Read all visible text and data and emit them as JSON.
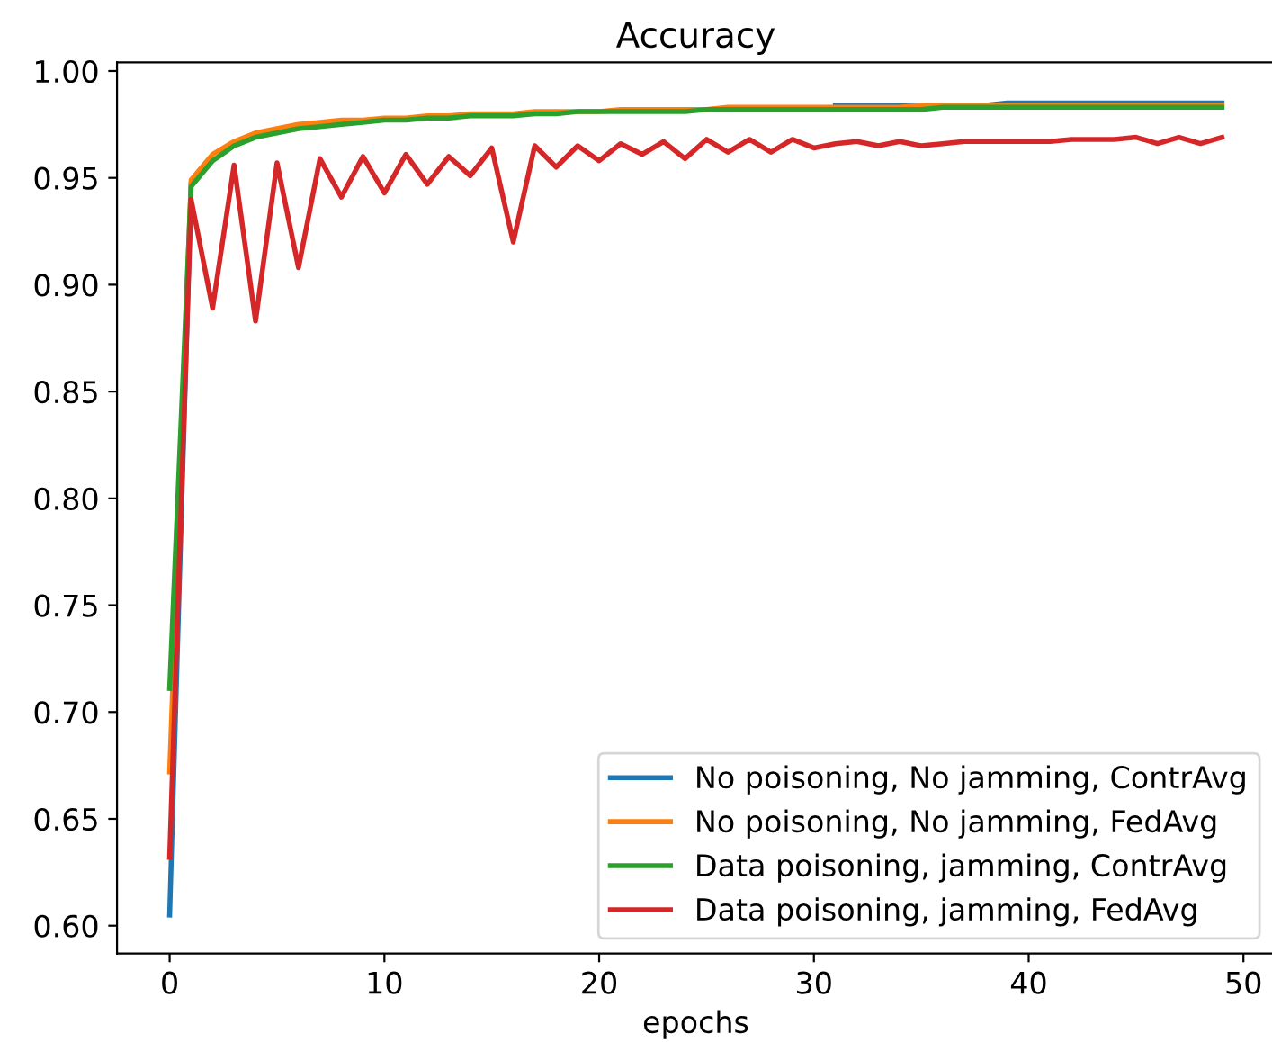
{
  "chart_data": {
    "type": "line",
    "title": "Accuracy",
    "xlabel": "epochs",
    "x": [
      0,
      1,
      2,
      3,
      4,
      5,
      6,
      7,
      8,
      9,
      10,
      11,
      12,
      13,
      14,
      15,
      16,
      17,
      18,
      19,
      20,
      21,
      22,
      23,
      24,
      25,
      26,
      27,
      28,
      29,
      30,
      31,
      32,
      33,
      34,
      35,
      36,
      37,
      38,
      39,
      40,
      41,
      42,
      43,
      44,
      45,
      46,
      47,
      48,
      49
    ],
    "series": [
      {
        "name": "No poisoning, No jamming, ContrAvg",
        "color": "#1f77b4",
        "values": [
          0.605,
          0.947,
          null,
          null,
          null,
          null,
          null,
          null,
          null,
          null,
          null,
          null,
          null,
          null,
          null,
          null,
          null,
          null,
          null,
          null,
          null,
          null,
          null,
          null,
          null,
          null,
          null,
          null,
          null,
          null,
          null,
          0.984,
          0.984,
          0.984,
          0.984,
          0.984,
          0.984,
          0.984,
          0.984,
          0.985,
          0.985,
          0.985,
          0.985,
          0.985,
          0.985,
          0.985,
          0.985,
          0.985,
          0.985,
          0.985
        ]
      },
      {
        "name": "No poisoning, No jamming, FedAvg",
        "color": "#ff7f0e",
        "values": [
          0.672,
          0.949,
          0.961,
          0.967,
          0.971,
          0.973,
          0.975,
          0.976,
          0.977,
          0.977,
          0.978,
          0.978,
          0.979,
          0.979,
          0.98,
          0.98,
          0.98,
          0.981,
          0.981,
          0.981,
          0.981,
          0.982,
          0.982,
          0.982,
          0.982,
          0.982,
          0.983,
          0.983,
          0.983,
          0.983,
          0.983,
          0.983,
          0.983,
          0.983,
          0.983,
          0.984,
          0.984,
          0.984,
          0.984,
          0.984,
          0.984,
          0.984,
          0.984,
          0.984,
          0.984,
          0.984,
          0.984,
          0.984,
          0.984,
          0.984
        ]
      },
      {
        "name": "Data poisoning, jamming, ContrAvg",
        "color": "#2ca02c",
        "values": [
          0.711,
          0.946,
          0.958,
          0.965,
          0.969,
          0.971,
          0.973,
          0.974,
          0.975,
          0.976,
          0.977,
          0.977,
          0.978,
          0.978,
          0.979,
          0.979,
          0.979,
          0.98,
          0.98,
          0.981,
          0.981,
          0.981,
          0.981,
          0.981,
          0.981,
          0.982,
          0.982,
          0.982,
          0.982,
          0.982,
          0.982,
          0.982,
          0.982,
          0.982,
          0.982,
          0.982,
          0.983,
          0.983,
          0.983,
          0.983,
          0.983,
          0.983,
          0.983,
          0.983,
          0.983,
          0.983,
          0.983,
          0.983,
          0.983,
          0.983
        ]
      },
      {
        "name": "Data poisoning, jamming, FedAvg",
        "color": "#d62728",
        "values": [
          0.632,
          0.94,
          0.889,
          0.956,
          0.883,
          0.957,
          0.908,
          0.959,
          0.941,
          0.96,
          0.943,
          0.961,
          0.947,
          0.96,
          0.951,
          0.964,
          0.92,
          0.965,
          0.955,
          0.965,
          0.958,
          0.966,
          0.961,
          0.967,
          0.959,
          0.968,
          0.962,
          0.968,
          0.962,
          0.968,
          0.964,
          0.966,
          0.967,
          0.965,
          0.967,
          0.965,
          0.966,
          0.967,
          0.967,
          0.967,
          0.967,
          0.967,
          0.968,
          0.968,
          0.968,
          0.969,
          0.966,
          0.969,
          0.966,
          0.969
        ]
      }
    ],
    "xlim": [
      -2.45,
      51.45
    ],
    "xticks": [
      0,
      10,
      20,
      30,
      40,
      50
    ],
    "ylim": [
      0.587,
      1.004
    ],
    "yticks": [
      {
        "value": 0.6,
        "label": "0.60"
      },
      {
        "value": 0.65,
        "label": "0.65"
      },
      {
        "value": 0.7,
        "label": "0.70"
      },
      {
        "value": 0.75,
        "label": "0.75"
      },
      {
        "value": 0.8,
        "label": "0.80"
      },
      {
        "value": 0.85,
        "label": "0.85"
      },
      {
        "value": 0.9,
        "label": "0.90"
      },
      {
        "value": 0.95,
        "label": "0.95"
      },
      {
        "value": 1.0,
        "label": "1.00"
      }
    ],
    "legend": "bottom right",
    "grid": false,
    "marker": "none",
    "line_style": "solid"
  }
}
